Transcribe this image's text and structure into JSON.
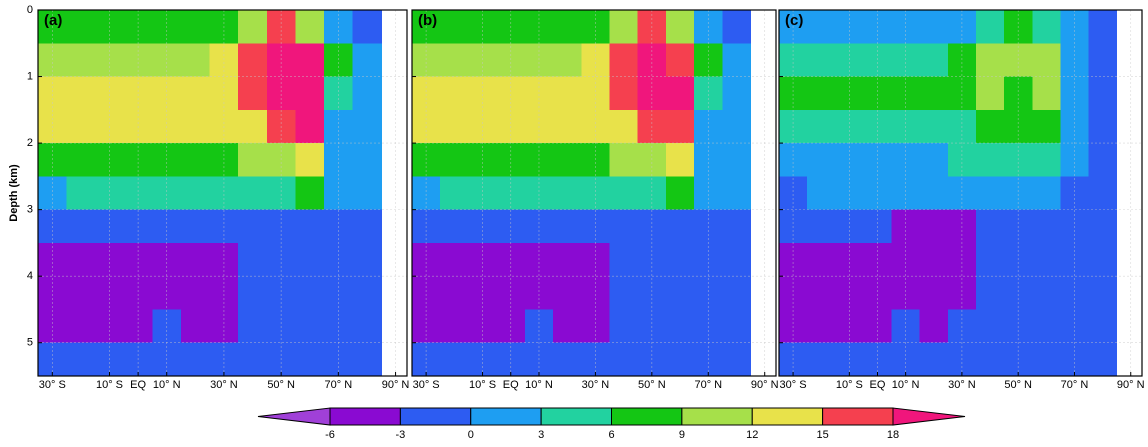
{
  "chart_data": [
    {
      "type": "contour",
      "title": "(a)",
      "ylabel": "Depth (km)",
      "show_ytick_labels": true,
      "x": [
        -30,
        -20,
        -10,
        0,
        10,
        20,
        30,
        40,
        50,
        60,
        70,
        80,
        90
      ],
      "y": [
        0.25,
        0.75,
        1.25,
        1.75,
        2.25,
        2.75,
        3.25,
        3.75,
        4.25,
        4.75,
        5.25
      ],
      "z": [
        [
          7,
          7,
          7,
          7,
          7,
          7,
          7,
          10,
          16,
          10,
          1,
          -1,
          null
        ],
        [
          10,
          10,
          10,
          10,
          10,
          10,
          13,
          16,
          19,
          19,
          7,
          1,
          null
        ],
        [
          13,
          13,
          13,
          13,
          13,
          13,
          13,
          16,
          19,
          19,
          4,
          1,
          null
        ],
        [
          13,
          13,
          13,
          13,
          13,
          13,
          13,
          13,
          16,
          19,
          1,
          1,
          null
        ],
        [
          7,
          7,
          7,
          7,
          7,
          7,
          7,
          10,
          10,
          13,
          1,
          1,
          null
        ],
        [
          1,
          4,
          4,
          4,
          4,
          4,
          4,
          4,
          4,
          7,
          1,
          1,
          null
        ],
        [
          -1,
          -1,
          -1,
          -1,
          -1,
          -1,
          -1,
          -1,
          -1,
          -1,
          -1,
          -1,
          null
        ],
        [
          -4,
          -4,
          -4,
          -4,
          -4,
          -4,
          -4,
          -1,
          -1,
          -1,
          -1,
          -1,
          null
        ],
        [
          -4,
          -4,
          -4,
          -4,
          -4,
          -4,
          -4,
          -1,
          -1,
          -1,
          -1,
          -1,
          null
        ],
        [
          -4,
          -4,
          -4,
          -4,
          -1,
          -4,
          -4,
          -1,
          -1,
          -1,
          -1,
          -1,
          null
        ],
        [
          -1,
          -1,
          -1,
          -1,
          -1,
          -1,
          -1,
          -1,
          -1,
          -1,
          -1,
          -1,
          null
        ]
      ],
      "xlim": [
        -35,
        94
      ],
      "ylim": [
        0,
        5.5
      ],
      "y_inverted": true,
      "xticks": [
        {
          "value": -30,
          "label": "30° S"
        },
        {
          "value": -10,
          "label": "10° S"
        },
        {
          "value": 0,
          "label": "EQ"
        },
        {
          "value": 10,
          "label": "10° N"
        },
        {
          "value": 30,
          "label": "30° N"
        },
        {
          "value": 50,
          "label": "50° N"
        },
        {
          "value": 70,
          "label": "70° N"
        },
        {
          "value": 90,
          "label": "90° N"
        }
      ],
      "yticks": [
        0,
        1,
        2,
        3,
        4,
        5
      ],
      "grid": true
    },
    {
      "type": "contour",
      "title": "(b)",
      "show_ytick_labels": false,
      "x": [
        -30,
        -20,
        -10,
        0,
        10,
        20,
        30,
        40,
        50,
        60,
        70,
        80,
        90
      ],
      "y": [
        0.25,
        0.75,
        1.25,
        1.75,
        2.25,
        2.75,
        3.25,
        3.75,
        4.25,
        4.75,
        5.25
      ],
      "z": [
        [
          7,
          7,
          7,
          7,
          7,
          7,
          7,
          10,
          16,
          10,
          1,
          -1,
          null
        ],
        [
          10,
          10,
          10,
          10,
          10,
          10,
          13,
          16,
          19,
          16,
          7,
          1,
          null
        ],
        [
          13,
          13,
          13,
          13,
          13,
          13,
          13,
          16,
          19,
          19,
          4,
          1,
          null
        ],
        [
          13,
          13,
          13,
          13,
          13,
          13,
          13,
          13,
          16,
          16,
          1,
          1,
          null
        ],
        [
          7,
          7,
          7,
          7,
          7,
          7,
          7,
          10,
          10,
          13,
          1,
          1,
          null
        ],
        [
          1,
          4,
          4,
          4,
          4,
          4,
          4,
          4,
          4,
          7,
          1,
          1,
          null
        ],
        [
          -1,
          -1,
          -1,
          -1,
          -1,
          -1,
          -1,
          -1,
          -1,
          -1,
          -1,
          -1,
          null
        ],
        [
          -4,
          -4,
          -4,
          -4,
          -4,
          -4,
          -4,
          -1,
          -1,
          -1,
          -1,
          -1,
          null
        ],
        [
          -4,
          -4,
          -4,
          -4,
          -4,
          -4,
          -4,
          -1,
          -1,
          -1,
          -1,
          -1,
          null
        ],
        [
          -4,
          -4,
          -4,
          -4,
          -1,
          -4,
          -4,
          -1,
          -1,
          -1,
          -1,
          -1,
          null
        ],
        [
          -1,
          -1,
          -1,
          -1,
          -1,
          -1,
          -1,
          -1,
          -1,
          -1,
          -1,
          -1,
          null
        ]
      ],
      "xlim": [
        -35,
        94
      ],
      "ylim": [
        0,
        5.5
      ],
      "y_inverted": true,
      "xticks": [
        {
          "value": -30,
          "label": "30° S"
        },
        {
          "value": -10,
          "label": "10° S"
        },
        {
          "value": 0,
          "label": "EQ"
        },
        {
          "value": 10,
          "label": "10° N"
        },
        {
          "value": 30,
          "label": "30° N"
        },
        {
          "value": 50,
          "label": "50° N"
        },
        {
          "value": 70,
          "label": "70° N"
        },
        {
          "value": 90,
          "label": "90° N"
        }
      ],
      "yticks": [
        0,
        1,
        2,
        3,
        4,
        5
      ],
      "grid": true
    },
    {
      "type": "contour",
      "title": "(c)",
      "show_ytick_labels": false,
      "x": [
        -30,
        -20,
        -10,
        0,
        10,
        20,
        30,
        40,
        50,
        60,
        70,
        80,
        90
      ],
      "y": [
        0.25,
        0.75,
        1.25,
        1.75,
        2.25,
        2.75,
        3.25,
        3.75,
        4.25,
        4.75,
        5.25
      ],
      "z": [
        [
          1,
          1,
          1,
          1,
          1,
          1,
          1,
          4,
          7,
          4,
          1,
          -1,
          null
        ],
        [
          4,
          4,
          4,
          4,
          4,
          4,
          7,
          10,
          10,
          10,
          1,
          -1,
          null
        ],
        [
          7,
          7,
          7,
          7,
          7,
          7,
          7,
          10,
          7,
          10,
          1,
          -1,
          null
        ],
        [
          4,
          4,
          4,
          4,
          4,
          4,
          4,
          7,
          7,
          7,
          1,
          -1,
          null
        ],
        [
          1,
          1,
          1,
          1,
          1,
          1,
          4,
          4,
          4,
          4,
          1,
          -1,
          null
        ],
        [
          -1,
          1,
          1,
          1,
          1,
          1,
          1,
          1,
          1,
          1,
          -1,
          -1,
          null
        ],
        [
          -1,
          -1,
          -1,
          -1,
          -4,
          -4,
          -4,
          -1,
          -1,
          -1,
          -1,
          -1,
          null
        ],
        [
          -4,
          -4,
          -4,
          -4,
          -4,
          -4,
          -4,
          -1,
          -1,
          -1,
          -1,
          -1,
          null
        ],
        [
          -4,
          -4,
          -4,
          -4,
          -4,
          -4,
          -4,
          -1,
          -1,
          -1,
          -1,
          -1,
          null
        ],
        [
          -4,
          -4,
          -4,
          -4,
          -1,
          -4,
          -1,
          -1,
          -1,
          -1,
          -1,
          -1,
          null
        ],
        [
          -1,
          -1,
          -1,
          -1,
          -1,
          -1,
          -1,
          -1,
          -1,
          -1,
          -1,
          -1,
          null
        ]
      ],
      "xlim": [
        -35,
        94
      ],
      "ylim": [
        0,
        5.5
      ],
      "y_inverted": true,
      "xticks": [
        {
          "value": -30,
          "label": "30° S"
        },
        {
          "value": -10,
          "label": "10° S"
        },
        {
          "value": 0,
          "label": "EQ"
        },
        {
          "value": 10,
          "label": "10° N"
        },
        {
          "value": 30,
          "label": "30° N"
        },
        {
          "value": 50,
          "label": "50° N"
        },
        {
          "value": 70,
          "label": "70° N"
        },
        {
          "value": 90,
          "label": "90° N"
        }
      ],
      "yticks": [
        0,
        1,
        2,
        3,
        4,
        5
      ],
      "grid": true
    }
  ],
  "colorbar": {
    "levels": [
      -6,
      -3,
      0,
      3,
      6,
      9,
      12,
      15,
      18
    ],
    "colors": [
      "#a040d8",
      "#8a0ad2",
      "#2d5cf2",
      "#1e9ef2",
      "#22d2a0",
      "#14c614",
      "#a6e04a",
      "#e8e24a",
      "#f5404f",
      "#f0167c"
    ],
    "extend": "both"
  }
}
